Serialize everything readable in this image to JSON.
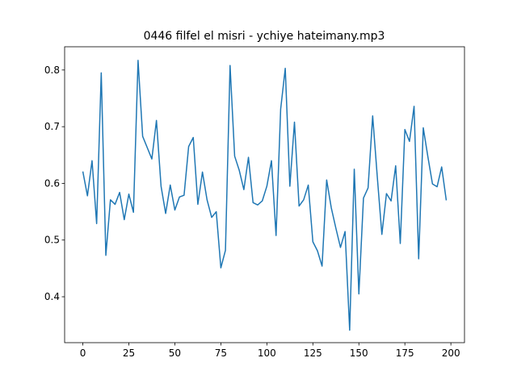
{
  "chart_data": {
    "type": "line",
    "title": "0446 filfel el misri - ychiye hateimany.mp3",
    "x": [
      0,
      2.5,
      5,
      7.5,
      10,
      12.5,
      15,
      17.5,
      20,
      22.5,
      25,
      27.5,
      30,
      32.5,
      35,
      37.5,
      40,
      42.5,
      45,
      47.5,
      50,
      52.5,
      55,
      57.5,
      60,
      62.5,
      65,
      67.5,
      70,
      72.5,
      75,
      77.5,
      80,
      82.5,
      85,
      87.5,
      90,
      92.5,
      95,
      97.5,
      100,
      102.5,
      105,
      107.5,
      110,
      112.5,
      115,
      117.5,
      120,
      122.5,
      125,
      127.5,
      130,
      132.5,
      135,
      137.5,
      140,
      142.5,
      145,
      147.5,
      150,
      152.5,
      155,
      157.5,
      160,
      162.5,
      165,
      167.5,
      170,
      172.5,
      175,
      177.5,
      180,
      182.5,
      185,
      187.5,
      190,
      192.5,
      195,
      197.5
    ],
    "series": [
      {
        "color": "#1f77b4",
        "values": [
          0.621,
          0.578,
          0.64,
          0.529,
          0.795,
          0.473,
          0.571,
          0.563,
          0.584,
          0.536,
          0.581,
          0.549,
          0.817,
          0.683,
          0.663,
          0.643,
          0.711,
          0.595,
          0.547,
          0.597,
          0.553,
          0.576,
          0.579,
          0.665,
          0.681,
          0.563,
          0.62,
          0.571,
          0.54,
          0.55,
          0.451,
          0.482,
          0.808,
          0.648,
          0.623,
          0.589,
          0.646,
          0.566,
          0.562,
          0.569,
          0.595,
          0.64,
          0.508,
          0.731,
          0.803,
          0.595,
          0.708,
          0.56,
          0.571,
          0.597,
          0.497,
          0.481,
          0.454,
          0.606,
          0.557,
          0.521,
          0.487,
          0.515,
          0.341,
          0.625,
          0.405,
          0.574,
          0.592,
          0.719,
          0.612,
          0.51,
          0.582,
          0.569,
          0.631,
          0.494,
          0.695,
          0.674,
          0.736,
          0.467,
          0.698,
          0.647,
          0.599,
          0.594,
          0.629,
          0.57
        ]
      }
    ],
    "xlim": [
      -9.9,
      207.4
    ],
    "xticks": [
      0,
      25,
      50,
      75,
      100,
      125,
      150,
      175,
      200
    ],
    "ylim": [
      0.319,
      0.841
    ],
    "yticks": [
      0.4,
      0.5,
      0.6,
      0.7,
      0.8
    ]
  }
}
